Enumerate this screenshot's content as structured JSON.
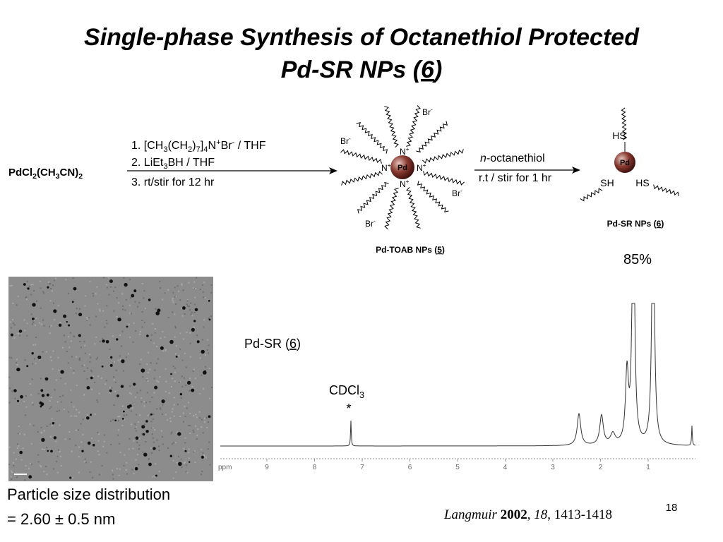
{
  "title": {
    "line1": "Single-phase Synthesis of Octanethiol Protected",
    "line2": [
      "Pd-SR NPs (",
      "6",
      ")"
    ]
  },
  "scheme": {
    "reactant": [
      "PdCl",
      "2",
      "(CH",
      "3",
      "CN)",
      "2"
    ],
    "step1": [
      [
        "1. [CH",
        "3",
        "(CH",
        "2",
        ")",
        "7",
        "]",
        "4",
        "N",
        "+",
        "Br",
        "-",
        " / THF"
      ],
      [
        "2. LiEt",
        "3",
        "BH / THF"
      ],
      "3. rt/stir for 12 hr"
    ],
    "intermediate": {
      "core": "Pd",
      "ammonium": [
        "N",
        "+"
      ],
      "counterion": [
        "Br",
        "-"
      ],
      "label": [
        "Pd-TOAB NPs (",
        "5",
        ")"
      ]
    },
    "step2": [
      [
        "n",
        "-octanethiol"
      ],
      "r.t / stir for 1 hr"
    ],
    "product": {
      "core": "Pd",
      "thiols": [
        "HS",
        "SH",
        "HS"
      ],
      "label": [
        "Pd-SR NPs (",
        "6",
        ")"
      ],
      "yield": "85%"
    }
  },
  "nmr": {
    "label": [
      "Pd-SR (",
      "6",
      ")"
    ],
    "solvent": [
      "CDCl",
      "3"
    ],
    "solvent_marker": "*",
    "axis_label": "ppm",
    "ticks": [
      9,
      8,
      7,
      6,
      5,
      4,
      3,
      2,
      1
    ]
  },
  "tem": {
    "caption": [
      "Particle size distribution",
      "= 2.60 ± 0.5 nm"
    ]
  },
  "citation": [
    "Langmuir ",
    "2002",
    ", ",
    "18",
    ", 1413-1418"
  ],
  "page_number": "18"
}
